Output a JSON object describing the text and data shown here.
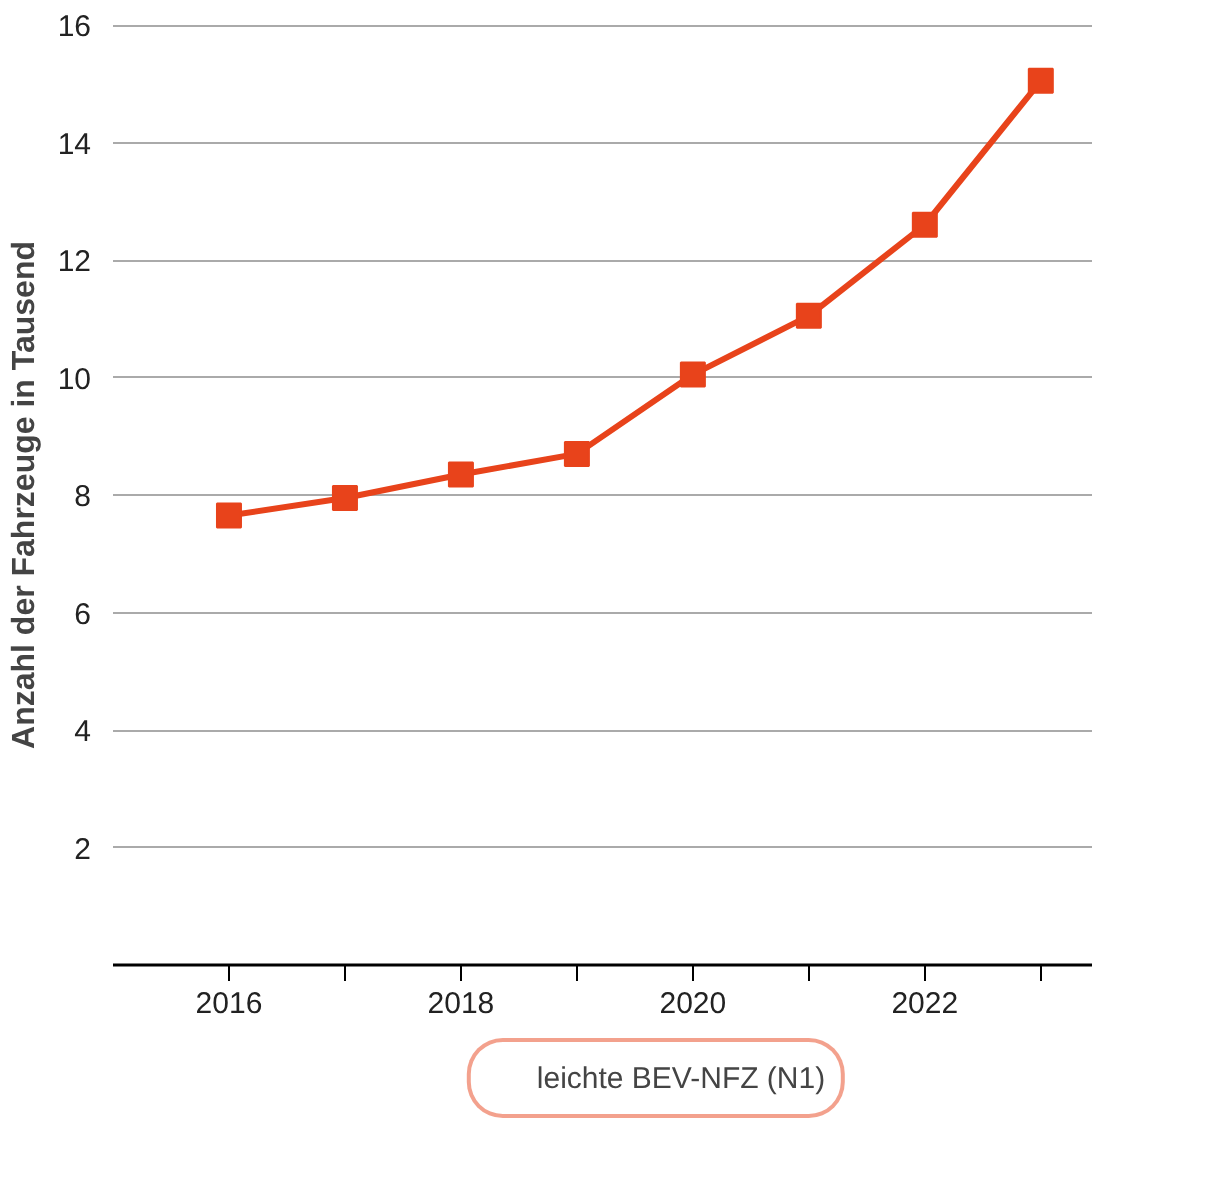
{
  "chart_data": {
    "type": "line",
    "ylabel": "Anzahl der Fahrzeuge in Tausend",
    "x": [
      2016,
      2017,
      2018,
      2019,
      2020,
      2021,
      2022,
      2023
    ],
    "series": [
      {
        "name": "leichte BEV-NFZ (N1)",
        "color": "#e8431b",
        "values": [
          7.65,
          7.95,
          8.35,
          8.7,
          10.05,
          11.05,
          12.6,
          15.05
        ]
      }
    ],
    "xlim": [
      2015,
      2023.45
    ],
    "xticks": [
      2016,
      {
        "value": 2017,
        "label": null
      },
      2018,
      {
        "value": 2019,
        "label": null
      },
      2020,
      {
        "value": 2021,
        "label": null
      },
      2022,
      {
        "value": 2023,
        "label": null
      }
    ],
    "ylim": [
      0,
      16
    ],
    "yticks": [
      2,
      4,
      6,
      8,
      10,
      12,
      14,
      16
    ],
    "grid": "y",
    "legend": "bottom",
    "marker": "square",
    "line_style": "solid"
  }
}
